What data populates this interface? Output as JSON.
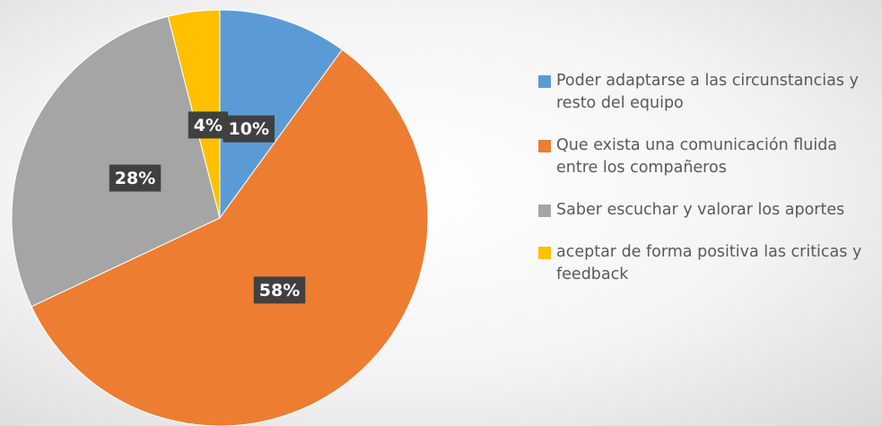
{
  "chart_data": {
    "type": "pie",
    "categories": [
      "Poder adaptarse a las circunstancias y resto del equipo",
      "Que exista una comunicación fluida entre los compañeros",
      "Saber escuchar y valorar los aportes",
      "aceptar de forma positiva las criticas y feedback"
    ],
    "values": [
      10,
      58,
      28,
      4
    ],
    "value_labels": [
      "10%",
      "58%",
      "28%",
      "4%"
    ],
    "colors": [
      "#5b9bd5",
      "#ed7d31",
      "#a5a5a5",
      "#ffc000"
    ],
    "legend": "right"
  }
}
